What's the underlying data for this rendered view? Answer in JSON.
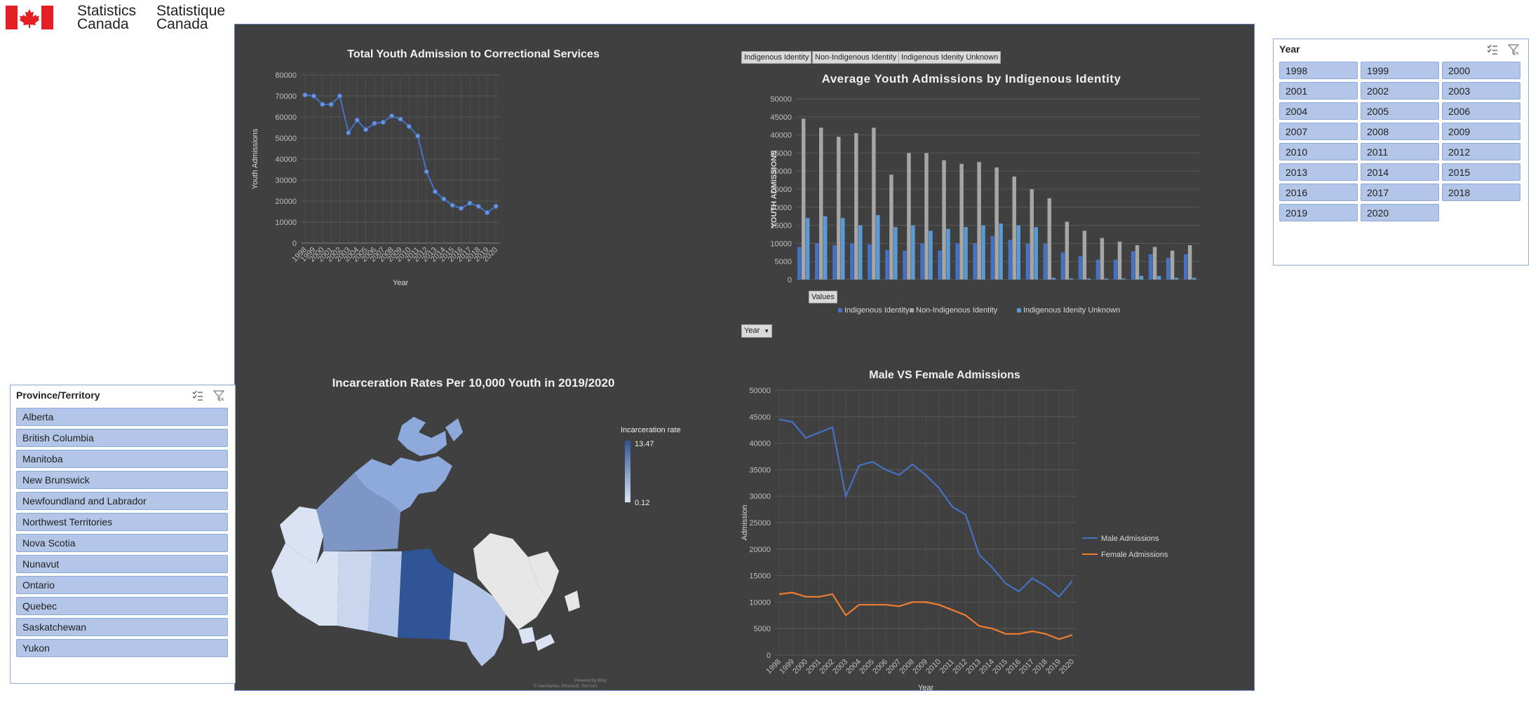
{
  "logo": {
    "en_line1": "Statistics",
    "en_line2": "Canada",
    "fr_line1": "Statistique",
    "fr_line2": "Canada",
    "flag_color": "#e31e24"
  },
  "colors": {
    "dashboard_bg": "#404040",
    "line_blue": "#4472c4",
    "bar_gray": "#a6a6a6",
    "female_orange": "#ed7d31",
    "slicer_item": "#b4c6e7",
    "map_max": "#2f5597",
    "map_min": "#dae3f3"
  },
  "total_chart": {
    "title": "Total Youth Admission to Correctional Services",
    "ylabel": "Youth Admissions",
    "xlabel": "Year"
  },
  "indigenous_chart": {
    "title": "Average Youth Admissions by Indigenous Identity",
    "ylabel": "YOUTH ADMISSIONS",
    "field_buttons": [
      "Indigenous Identity",
      "Non-Indigenous Identity",
      "Indigenous Idenity Unknown"
    ],
    "values_button": "Values",
    "year_button": "Year",
    "legend": [
      "Indigenous Identity",
      "Non-Indigenous Identity",
      "Indigenous Idenity Unknown"
    ]
  },
  "map_chart": {
    "title": "Incarceration Rates Per 10,000 Youth in 2019/2020",
    "legend_title": "Incarceration rate",
    "max_label": "13.47",
    "min_label": "0.12",
    "credit_line1": "Powered by Bing",
    "credit_line2": "© GeoNames, Microsoft, TomTom"
  },
  "gender_chart": {
    "title": "Male VS Female Admissions",
    "ylabel": "Admission",
    "xlabel": "Year",
    "legend": [
      "Male Admissions",
      "Female Admissions"
    ]
  },
  "chart_data": [
    {
      "type": "line",
      "title": "Total Youth Admission to Correctional Services",
      "xlabel": "Year",
      "ylabel": "Youth Admissions",
      "ylim": [
        0,
        80000
      ],
      "grid": true,
      "x": [
        "1998",
        "1999",
        "2000",
        "2001",
        "2002",
        "2003",
        "2004",
        "2005",
        "2006",
        "2007",
        "2008",
        "2009",
        "2010",
        "2011",
        "2012",
        "2013",
        "2014",
        "2015",
        "2016",
        "2017",
        "2018",
        "2019",
        "2020"
      ],
      "series": [
        {
          "values": [
            70500,
            70000,
            66000,
            66000,
            70000,
            52500,
            58500,
            54000,
            57000,
            57500,
            60500,
            59000,
            55500,
            51000,
            34000,
            24500,
            21000,
            18000,
            16500,
            19000,
            17500,
            14500,
            17500
          ]
        }
      ]
    },
    {
      "type": "bar",
      "title": "Average Youth Admissions by Indigenous Identity",
      "ylabel": "YOUTH ADMISSIONS",
      "ylim": [
        0,
        50000
      ],
      "grid": true,
      "legend_position": "bottom",
      "series": [
        {
          "name": "Indigenous Identity",
          "values": [
            9000,
            10000,
            9500,
            10000,
            9700,
            8200,
            8000,
            10000,
            8000,
            10000,
            10000,
            12000,
            11000,
            10000,
            10000,
            7500,
            6500,
            5500,
            5500,
            7800,
            7000,
            6000,
            7000
          ]
        },
        {
          "name": "Non-Indigenous Identity",
          "values": [
            44500,
            42000,
            39500,
            40500,
            42000,
            29000,
            35000,
            35000,
            33000,
            32000,
            32500,
            31000,
            28500,
            25000,
            22500,
            16000,
            13500,
            11500,
            10500,
            9500,
            9000,
            8000,
            9500
          ]
        },
        {
          "name": "Indigenous Idenity Unknown",
          "values": [
            17000,
            17500,
            17000,
            15000,
            17800,
            14500,
            15000,
            13500,
            14000,
            14500,
            15000,
            15500,
            15000,
            14500,
            500,
            300,
            300,
            300,
            300,
            1000,
            1000,
            500,
            500
          ]
        }
      ]
    },
    {
      "type": "line",
      "title": "Male VS Female Admissions",
      "xlabel": "Year",
      "ylabel": "Admission",
      "ylim": [
        0,
        50000
      ],
      "grid": true,
      "legend_position": "right",
      "x": [
        "1998",
        "1999",
        "2000",
        "2001",
        "2002",
        "2003",
        "2004",
        "2005",
        "2006",
        "2007",
        "2008",
        "2009",
        "2010",
        "2011",
        "2012",
        "2013",
        "2014",
        "2015",
        "2016",
        "2017",
        "2018",
        "2019",
        "2020"
      ],
      "series": [
        {
          "name": "Male Admissions",
          "values": [
            44500,
            44000,
            41000,
            42000,
            43000,
            30000,
            35800,
            36500,
            35000,
            34000,
            36000,
            34000,
            31500,
            28000,
            26500,
            19000,
            16500,
            13500,
            12000,
            14500,
            13000,
            11000,
            14000
          ]
        },
        {
          "name": "Female Admissions",
          "values": [
            11500,
            11800,
            11000,
            11000,
            11500,
            7500,
            9500,
            9500,
            9500,
            9200,
            10000,
            10000,
            9500,
            8500,
            7500,
            5500,
            5000,
            4000,
            4000,
            4500,
            4000,
            3000,
            3800
          ]
        }
      ]
    }
  ],
  "province_slicer": {
    "header": "Province/Territory",
    "items": [
      "Alberta",
      "British Columbia",
      "Manitoba",
      "New Brunswick",
      "Newfoundland and Labrador",
      "Northwest Territories",
      "Nova Scotia",
      "Nunavut",
      "Ontario",
      "Quebec",
      "Saskatchewan",
      "Yukon"
    ]
  },
  "year_slicer": {
    "header": "Year",
    "items": [
      "1998",
      "1999",
      "2000",
      "2001",
      "2002",
      "2003",
      "2004",
      "2005",
      "2006",
      "2007",
      "2008",
      "2009",
      "2010",
      "2011",
      "2012",
      "2013",
      "2014",
      "2015",
      "2016",
      "2017",
      "2018",
      "2019",
      "2020"
    ]
  },
  "icons": {
    "multiselect": "multi-select-icon",
    "clear_filter": "clear-filter-icon"
  }
}
